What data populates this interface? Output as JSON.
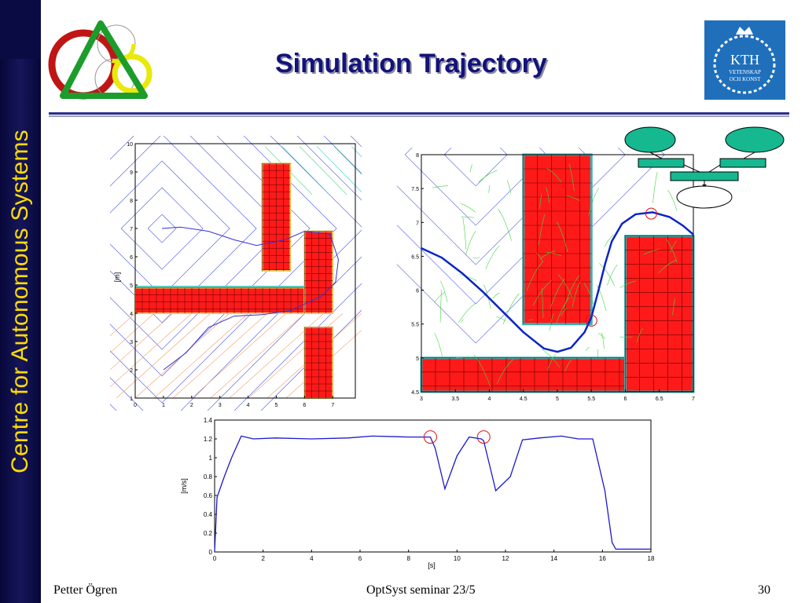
{
  "slide": {
    "title": "Simulation Trajectory",
    "sidebar_text": "Centre for Autonomous Systems",
    "colors": {
      "sidebar": "#0b0b44",
      "sidebar_text": "#ffdd00",
      "title": "#13137a",
      "obstacle": "#ff1a1a",
      "trajectory": "#0a24c8"
    }
  },
  "kth_logo": {
    "line1": "KTH",
    "line2": "VETENSKAP",
    "line3": "OCH KONST"
  },
  "footer": {
    "author": "Petter Ögren",
    "center": "OptSyst seminar 23/5",
    "page": "30"
  },
  "chart_data": [
    {
      "type": "line",
      "id": "left-map",
      "ylabel": "[m]",
      "xlabel": "",
      "xlim": [
        0,
        7.8
      ],
      "ylim": [
        1,
        10
      ],
      "x_ticks": [
        "0",
        "1",
        "2",
        "3",
        "4",
        "5",
        "6",
        "7"
      ],
      "y_ticks": [
        "1",
        "2",
        "3",
        "4",
        "5",
        "6",
        "7",
        "8",
        "9",
        "10"
      ],
      "series": [
        {
          "values": [
            [
              0.95,
              7.0
            ],
            [
              1.6,
              7.05
            ],
            [
              2.6,
              6.9
            ],
            [
              3.5,
              6.6
            ],
            [
              4.3,
              6.4
            ],
            [
              5.3,
              6.6
            ],
            [
              6.0,
              6.9
            ],
            [
              6.9,
              6.8
            ],
            [
              7.2,
              5.9
            ],
            [
              7.1,
              5.1
            ],
            [
              6.6,
              4.6
            ],
            [
              5.5,
              4.1
            ],
            [
              4.5,
              3.95
            ],
            [
              3.5,
              3.9
            ],
            [
              2.6,
              3.5
            ],
            [
              1.8,
              2.6
            ],
            [
              1.0,
              2.0
            ]
          ]
        }
      ]
    },
    {
      "type": "line",
      "id": "right-map",
      "xlabel": "",
      "ylabel": "",
      "xlim": [
        3,
        7
      ],
      "ylim": [
        4.5,
        8
      ],
      "x_ticks": [
        "3",
        "3.5",
        "4",
        "4.5",
        "5",
        "5.5",
        "6",
        "6.5",
        "7"
      ],
      "y_ticks": [
        "4.5",
        "5",
        "5.5",
        "6",
        "6.5",
        "7",
        "7.5",
        "8"
      ],
      "series": [
        {
          "values": [
            [
              3.0,
              6.62
            ],
            [
              3.3,
              6.48
            ],
            [
              3.6,
              6.25
            ],
            [
              3.9,
              5.98
            ],
            [
              4.2,
              5.68
            ],
            [
              4.5,
              5.38
            ],
            [
              4.8,
              5.14
            ],
            [
              5.0,
              5.09
            ],
            [
              5.2,
              5.15
            ],
            [
              5.4,
              5.38
            ],
            [
              5.5,
              5.6
            ],
            [
              5.6,
              5.98
            ],
            [
              5.7,
              6.38
            ],
            [
              5.8,
              6.72
            ],
            [
              5.95,
              6.98
            ],
            [
              6.15,
              7.12
            ],
            [
              6.4,
              7.15
            ],
            [
              6.65,
              7.08
            ],
            [
              6.85,
              6.95
            ],
            [
              7.0,
              6.82
            ]
          ]
        }
      ],
      "markers": [
        [
          5.5,
          5.55
        ],
        [
          6.38,
          7.13
        ]
      ]
    },
    {
      "type": "line",
      "id": "speed-plot",
      "xlabel": "[s]",
      "ylabel": "[m/s]",
      "xlim": [
        0,
        18
      ],
      "ylim": [
        0,
        1.4
      ],
      "x_ticks": [
        "0",
        "2",
        "4",
        "6",
        "8",
        "10",
        "12",
        "14",
        "16",
        "18"
      ],
      "y_ticks": [
        "0",
        "0.2",
        "0.4",
        "0.6",
        "0.8",
        "1",
        "1.2",
        "1.4"
      ],
      "series": [
        {
          "values": [
            [
              0.0,
              0.0
            ],
            [
              0.1,
              0.58
            ],
            [
              0.4,
              0.8
            ],
            [
              0.7,
              1.0
            ],
            [
              1.1,
              1.23
            ],
            [
              1.6,
              1.2
            ],
            [
              2.5,
              1.21
            ],
            [
              4,
              1.2
            ],
            [
              5.5,
              1.21
            ],
            [
              6.5,
              1.23
            ],
            [
              8.0,
              1.22
            ],
            [
              8.9,
              1.22
            ],
            [
              9.1,
              1.1
            ],
            [
              9.5,
              0.67
            ],
            [
              10.0,
              1.02
            ],
            [
              10.5,
              1.22
            ],
            [
              11.0,
              1.2
            ],
            [
              11.1,
              1.18
            ],
            [
              11.6,
              0.65
            ],
            [
              12.2,
              0.8
            ],
            [
              12.7,
              1.19
            ],
            [
              13.4,
              1.21
            ],
            [
              14.3,
              1.23
            ],
            [
              15.0,
              1.2
            ],
            [
              15.6,
              1.2
            ],
            [
              16.1,
              0.65
            ],
            [
              16.4,
              0.1
            ],
            [
              16.55,
              0.03
            ],
            [
              17.0,
              0.03
            ],
            [
              17.5,
              0.03
            ],
            [
              18.0,
              0.03
            ]
          ]
        }
      ],
      "markers": [
        [
          8.9,
          1.22
        ],
        [
          11.1,
          1.22
        ]
      ]
    }
  ]
}
